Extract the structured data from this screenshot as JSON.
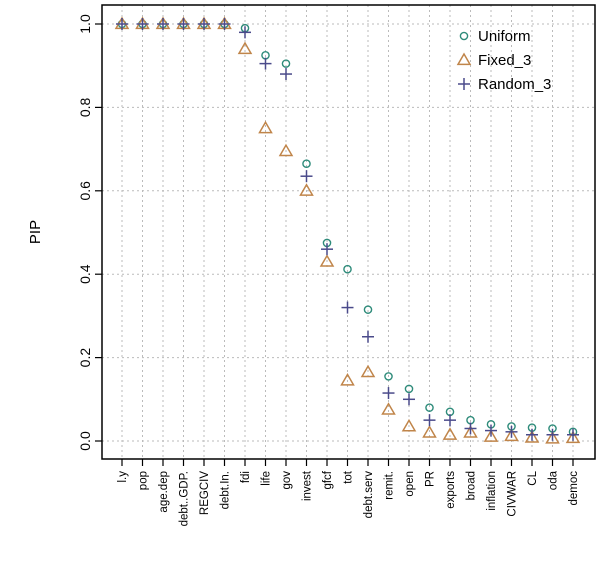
{
  "chart_data": {
    "type": "scatter",
    "title": "",
    "xlabel": "",
    "ylabel": "PIP",
    "ylim": [
      0,
      1
    ],
    "yticks": [
      "0.0",
      "0.2",
      "0.4",
      "0.6",
      "0.8",
      "1.0"
    ],
    "grid": true,
    "legend_position": "top-right",
    "categories": [
      "l.y",
      "pop",
      "age.dep",
      "debt..GDP.",
      "REGCIV",
      "debt.In.",
      "fdi",
      "life",
      "gov",
      "invest",
      "gfcf",
      "tot",
      "debt.serv",
      "remit.",
      "open",
      "PR",
      "exports",
      "broad",
      "inflation",
      "CIVWAR",
      "CL",
      "oda",
      "democ"
    ],
    "series": [
      {
        "name": "Uniform",
        "marker": "circle",
        "color": "#2e8b7a",
        "values": [
          1.0,
          1.0,
          1.0,
          1.0,
          1.0,
          1.0,
          0.99,
          0.925,
          0.905,
          0.665,
          0.475,
          0.412,
          0.315,
          0.155,
          0.125,
          0.08,
          0.07,
          0.05,
          0.04,
          0.035,
          0.032,
          0.03,
          0.022
        ]
      },
      {
        "name": "Fixed_3",
        "marker": "triangle",
        "color": "#c0854a",
        "values": [
          1.0,
          1.0,
          1.0,
          1.0,
          1.0,
          1.0,
          0.94,
          0.75,
          0.695,
          0.6,
          0.43,
          0.145,
          0.165,
          0.075,
          0.035,
          0.02,
          0.015,
          0.02,
          0.01,
          0.012,
          0.008,
          0.006,
          0.007
        ]
      },
      {
        "name": "Random_3",
        "marker": "plus",
        "color": "#4a4a8a",
        "values": [
          1.0,
          1.0,
          1.0,
          1.0,
          1.0,
          1.0,
          0.98,
          0.905,
          0.88,
          0.635,
          0.46,
          0.32,
          0.25,
          0.115,
          0.1,
          0.05,
          0.05,
          0.03,
          0.025,
          0.022,
          0.015,
          0.015,
          0.015
        ]
      }
    ]
  }
}
